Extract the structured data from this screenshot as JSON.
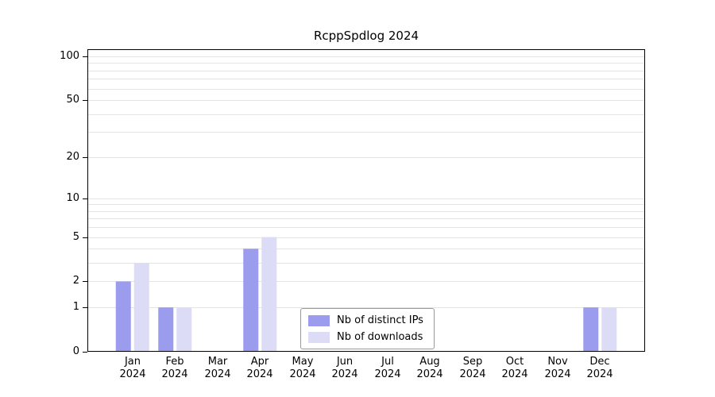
{
  "chart_data": {
    "type": "bar",
    "title": "RcppSpdlog 2024",
    "categories": [
      "Jan",
      "Feb",
      "Mar",
      "Apr",
      "May",
      "Jun",
      "Jul",
      "Aug",
      "Sep",
      "Oct",
      "Nov",
      "Dec"
    ],
    "year": "2024",
    "series": [
      {
        "name": "Nb of distinct IPs",
        "color": "#9c9cee",
        "values": [
          2,
          1,
          0,
          4,
          0,
          0,
          0,
          0,
          0,
          0,
          0,
          1
        ]
      },
      {
        "name": "Nb of downloads",
        "color": "#dcdcf7",
        "values": [
          3,
          1,
          0,
          5,
          0,
          0,
          0,
          0,
          0,
          0,
          0,
          1
        ]
      }
    ],
    "yticks": [
      0,
      1,
      2,
      5,
      10,
      20,
      50,
      100
    ],
    "ylim": [
      0,
      100
    ],
    "yscale": "log1p",
    "grid": "horizontal",
    "grid_minor_ticks": [
      1,
      2,
      3,
      4,
      5,
      6,
      7,
      8,
      9,
      10,
      20,
      30,
      40,
      50,
      60,
      70,
      80,
      90,
      100
    ],
    "grid_color": "#e4e4e4",
    "axis_color": "#000000",
    "legend_position": "bottom-center"
  }
}
